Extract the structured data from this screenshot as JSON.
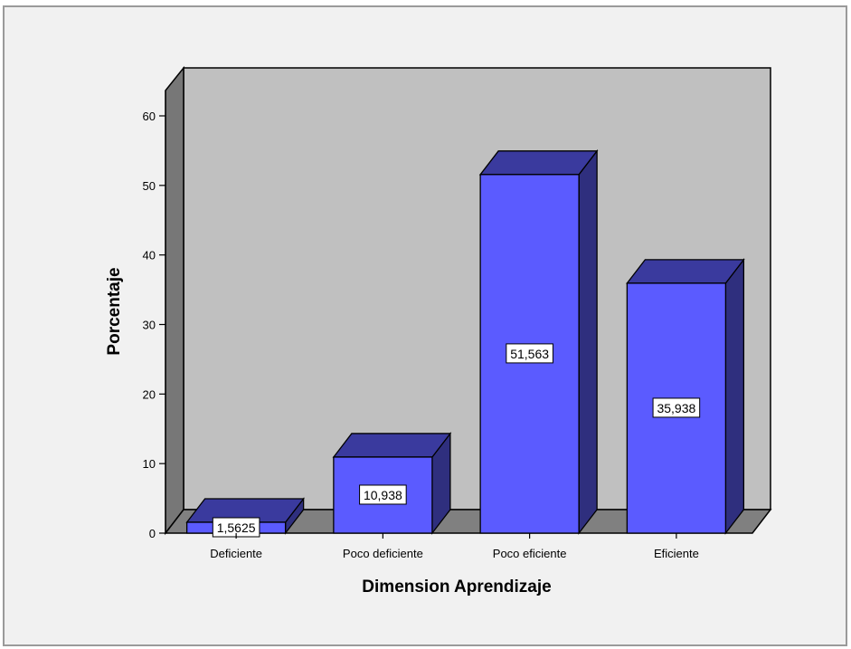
{
  "chart_data": {
    "type": "bar",
    "categories": [
      "Deficiente",
      "Poco deficiente",
      "Poco eficiente",
      "Eficiente"
    ],
    "values": [
      1.5625,
      10.938,
      51.563,
      35.938
    ],
    "data_labels": [
      "1,5625",
      "10,938",
      "51,563",
      "35,938"
    ],
    "yticks": [
      0,
      10,
      20,
      30,
      40,
      50,
      60
    ],
    "ylim": [
      0,
      60
    ],
    "xlabel": "Dimension Aprendizaje",
    "ylabel": "Porcentaje",
    "grid": false,
    "three_d": true,
    "colors": {
      "bar_front": "#5b5bff",
      "bar_top": "#3a3a9e",
      "bar_side": "#2f2f7e",
      "wall": "#c0c0c0",
      "floor": "#808080",
      "left_wall": "#777777",
      "frame_background": "#f1f1f1"
    }
  }
}
